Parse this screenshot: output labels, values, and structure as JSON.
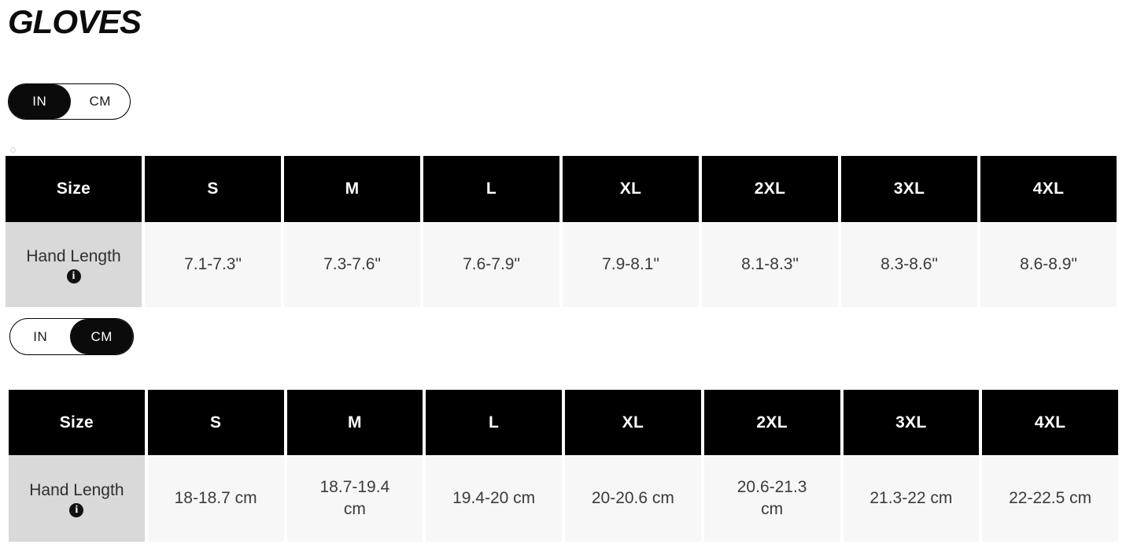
{
  "page_title": "GLOVES",
  "toggles": {
    "inches": {
      "in_label": "IN",
      "cm_label": "CM",
      "selected": "IN"
    },
    "centimeters": {
      "in_label": "IN",
      "cm_label": "CM",
      "selected": "CM"
    }
  },
  "size_chart_in": {
    "headers": [
      "Size",
      "S",
      "M",
      "L",
      "XL",
      "2XL",
      "3XL",
      "4XL"
    ],
    "row_label": "Hand Length",
    "info_icon_glyph": "i",
    "values": [
      "7.1-7.3\"",
      "7.3-7.6\"",
      "7.6-7.9\"",
      "7.9-8.1\"",
      "8.1-8.3\"",
      "8.3-8.6\"",
      "8.6-8.9\""
    ]
  },
  "size_chart_cm": {
    "headers": [
      "Size",
      "S",
      "M",
      "L",
      "XL",
      "2XL",
      "3XL",
      "4XL"
    ],
    "row_label": "Hand Length",
    "info_icon_glyph": "i",
    "values": [
      "18-18.7 cm",
      "18.7-19.4 cm",
      "19.4-20 cm",
      "20-20.6 cm",
      "20.6-21.3 cm",
      "21.3-22 cm",
      "22-22.5 cm"
    ]
  },
  "colors": {
    "header_bg": "#000000",
    "header_text": "#ffffff",
    "label_cell_bg": "#d9d9d9",
    "value_cell_bg": "#f7f7f7",
    "cell_text": "#3b3b3b",
    "toggle_selected_bg": "#0b0b0b"
  }
}
